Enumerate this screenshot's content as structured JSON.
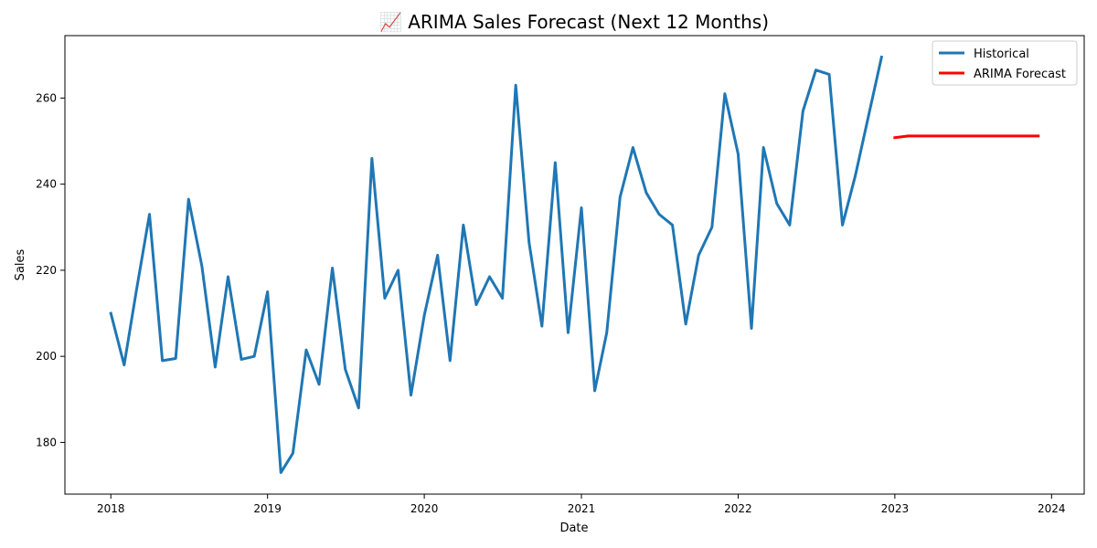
{
  "chart_data": {
    "type": "line",
    "title": "📈 ARIMA Sales Forecast (Next 12 Months)",
    "xlabel": "Date",
    "ylabel": "Sales",
    "xlim": [
      "2017-09-16",
      "2024-03-17"
    ],
    "ylim": [
      168,
      274.5
    ],
    "x_ticks": [
      "2018",
      "2019",
      "2020",
      "2021",
      "2022",
      "2023",
      "2024"
    ],
    "x_tick_dates": [
      "2018-01-01",
      "2019-01-01",
      "2020-01-01",
      "2021-01-01",
      "2022-01-01",
      "2023-01-01",
      "2024-01-01"
    ],
    "y_ticks": [
      180,
      200,
      220,
      240,
      260
    ],
    "grid": false,
    "legend_position": "top-right",
    "series": [
      {
        "name": "Historical",
        "color": "#1f77b4",
        "x": [
          "2018-01",
          "2018-02",
          "2018-03",
          "2018-04",
          "2018-05",
          "2018-06",
          "2018-07",
          "2018-08",
          "2018-09",
          "2018-10",
          "2018-11",
          "2018-12",
          "2019-01",
          "2019-02",
          "2019-03",
          "2019-04",
          "2019-05",
          "2019-06",
          "2019-07",
          "2019-08",
          "2019-09",
          "2019-10",
          "2019-11",
          "2019-12",
          "2020-01",
          "2020-02",
          "2020-03",
          "2020-04",
          "2020-05",
          "2020-06",
          "2020-07",
          "2020-08",
          "2020-09",
          "2020-10",
          "2020-11",
          "2020-12",
          "2021-01",
          "2021-02",
          "2021-03",
          "2021-04",
          "2021-05",
          "2021-06",
          "2021-07",
          "2021-08",
          "2021-09",
          "2021-10",
          "2021-11",
          "2021-12",
          "2022-01",
          "2022-02",
          "2022-03",
          "2022-04",
          "2022-05",
          "2022-06",
          "2022-07",
          "2022-08",
          "2022-09",
          "2022-10",
          "2022-11",
          "2022-12"
        ],
        "values": [
          210,
          198,
          215,
          233,
          199,
          199.5,
          236.5,
          221,
          197.5,
          218.5,
          199.3,
          200,
          215,
          173,
          177.5,
          201.5,
          193.5,
          220.5,
          197,
          188,
          246,
          213.5,
          220,
          191,
          209.5,
          223.5,
          199,
          230.5,
          212,
          218.5,
          213.5,
          263,
          226.5,
          207,
          245,
          205.5,
          234.5,
          192,
          205.5,
          237,
          248.5,
          238,
          233,
          230.5,
          207.5,
          223.5,
          230,
          261,
          247,
          206.5,
          248.5,
          235.5,
          230.5,
          257,
          266.5,
          265.5,
          230.5,
          242,
          256,
          269.5
        ]
      },
      {
        "name": "ARIMA Forecast",
        "color": "#ff0000",
        "x": [
          "2023-01",
          "2023-02",
          "2023-03",
          "2023-04",
          "2023-05",
          "2023-06",
          "2023-07",
          "2023-08",
          "2023-09",
          "2023-10",
          "2023-11",
          "2023-12"
        ],
        "values": [
          250.8,
          251.2,
          251.2,
          251.2,
          251.2,
          251.2,
          251.2,
          251.2,
          251.2,
          251.2,
          251.2,
          251.2
        ]
      }
    ]
  }
}
